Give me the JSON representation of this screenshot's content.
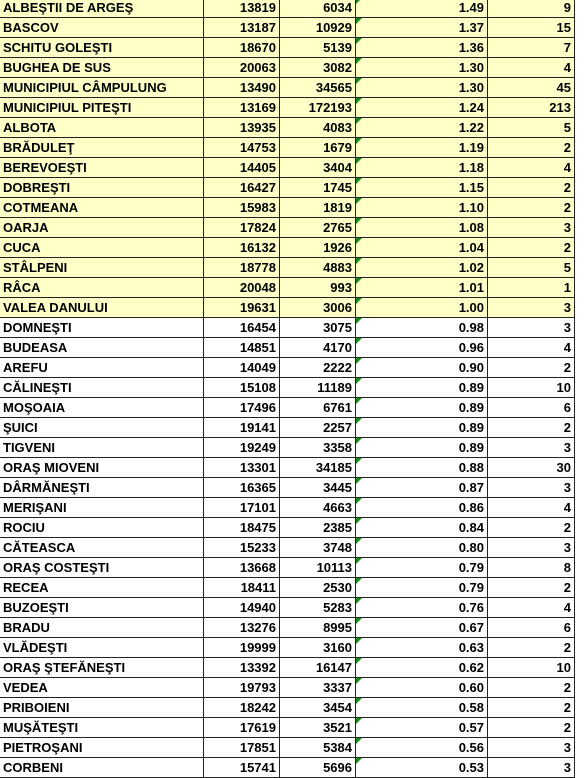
{
  "table": {
    "rows": [
      [
        "ALBEŞTII DE ARGEŞ",
        13819,
        6034,
        "1.49",
        9
      ],
      [
        "BASCOV",
        13187,
        10929,
        "1.37",
        15
      ],
      [
        "SCHITU GOLEŞTI",
        18670,
        5139,
        "1.36",
        7
      ],
      [
        "BUGHEA DE SUS",
        20063,
        3082,
        "1.30",
        4
      ],
      [
        "MUNICIPIUL CÂMPULUNG",
        13490,
        34565,
        "1.30",
        45
      ],
      [
        "MUNICIPIUL PITEŞTI",
        13169,
        172193,
        "1.24",
        213
      ],
      [
        "ALBOTA",
        13935,
        4083,
        "1.22",
        5
      ],
      [
        "BRĂDULEŢ",
        14753,
        1679,
        "1.19",
        2
      ],
      [
        "BEREVOEŞTI",
        14405,
        3404,
        "1.18",
        4
      ],
      [
        "DOBREŞTI",
        16427,
        1745,
        "1.15",
        2
      ],
      [
        "COTMEANA",
        15983,
        1819,
        "1.10",
        2
      ],
      [
        "OARJA",
        17824,
        2765,
        "1.08",
        3
      ],
      [
        "CUCA",
        16132,
        1926,
        "1.04",
        2
      ],
      [
        "STÂLPENI",
        18778,
        4883,
        "1.02",
        5
      ],
      [
        "RÂCA",
        20048,
        993,
        "1.01",
        1
      ],
      [
        "VALEA DANULUI",
        19631,
        3006,
        "1.00",
        3
      ],
      [
        "DOMNEŞTI",
        16454,
        3075,
        "0.98",
        3
      ],
      [
        "BUDEASA",
        14851,
        4170,
        "0.96",
        4
      ],
      [
        "AREFU",
        14049,
        2222,
        "0.90",
        2
      ],
      [
        "CĂLINEŞTI",
        15108,
        11189,
        "0.89",
        10
      ],
      [
        "MOŞOAIA",
        17496,
        6761,
        "0.89",
        6
      ],
      [
        "ŞUICI",
        19141,
        2257,
        "0.89",
        2
      ],
      [
        "TIGVENI",
        19249,
        3358,
        "0.89",
        3
      ],
      [
        "ORAŞ MIOVENI",
        13301,
        34185,
        "0.88",
        30
      ],
      [
        "DÂRMĂNEŞTI",
        16365,
        3445,
        "0.87",
        3
      ],
      [
        "MERIŞANI",
        17101,
        4663,
        "0.86",
        4
      ],
      [
        "ROCIU",
        18475,
        2385,
        "0.84",
        2
      ],
      [
        "CĂTEASCA",
        15233,
        3748,
        "0.80",
        3
      ],
      [
        "ORAŞ COSTEŞTI",
        13668,
        10113,
        "0.79",
        8
      ],
      [
        "RECEA",
        18411,
        2530,
        "0.79",
        2
      ],
      [
        "BUZOEŞTI",
        14940,
        5283,
        "0.76",
        4
      ],
      [
        "BRADU",
        13276,
        8995,
        "0.67",
        6
      ],
      [
        "VLĂDEŞTI",
        19999,
        3160,
        "0.63",
        2
      ],
      [
        "ORAŞ ŞTEFĂNEŞTI",
        13392,
        16147,
        "0.62",
        10
      ],
      [
        "VEDEA",
        19793,
        3337,
        "0.60",
        2
      ],
      [
        "PRIBOIENI",
        18242,
        3454,
        "0.58",
        2
      ],
      [
        "MUŞĂTEŞTI",
        17619,
        3521,
        "0.57",
        2
      ],
      [
        "PIETROŞANI",
        17851,
        5384,
        "0.56",
        3
      ],
      [
        "CORBENI",
        15741,
        5696,
        "0.53",
        3
      ]
    ]
  }
}
